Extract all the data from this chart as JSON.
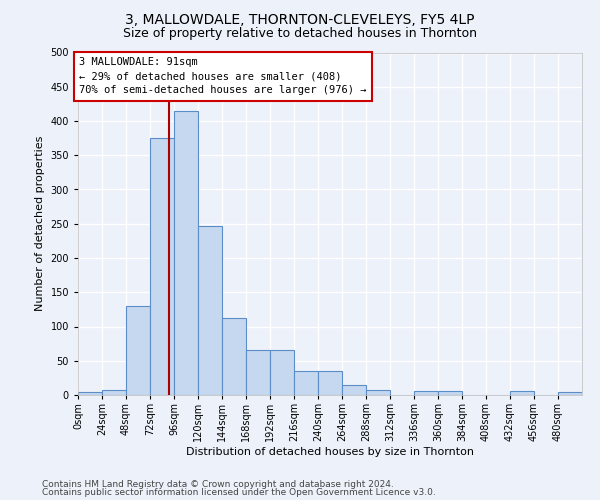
{
  "title": "3, MALLOWDALE, THORNTON-CLEVELEYS, FY5 4LP",
  "subtitle": "Size of property relative to detached houses in Thornton",
  "xlabel": "Distribution of detached houses by size in Thornton",
  "ylabel": "Number of detached properties",
  "bin_labels": [
    "0sqm",
    "24sqm",
    "48sqm",
    "72sqm",
    "96sqm",
    "120sqm",
    "144sqm",
    "168sqm",
    "192sqm",
    "216sqm",
    "240sqm",
    "264sqm",
    "288sqm",
    "312sqm",
    "336sqm",
    "360sqm",
    "384sqm",
    "408sqm",
    "432sqm",
    "456sqm",
    "480sqm"
  ],
  "bar_heights": [
    5,
    7,
    130,
    375,
    415,
    247,
    112,
    65,
    65,
    35,
    35,
    15,
    8,
    0,
    6,
    6,
    0,
    0,
    6,
    0,
    4
  ],
  "bar_color": "#c5d8f0",
  "bar_edge_color": "#5b8dc8",
  "bin_edges": [
    0,
    24,
    48,
    72,
    96,
    120,
    144,
    168,
    192,
    216,
    240,
    264,
    288,
    312,
    336,
    360,
    384,
    408,
    432,
    456,
    480,
    504
  ],
  "property_size": 91,
  "vline_color": "#aa0000",
  "annotation_text": "3 MALLOWDALE: 91sqm\n← 29% of detached houses are smaller (408)\n70% of semi-detached houses are larger (976) →",
  "annotation_box_color": "#ffffff",
  "annotation_box_edge_color": "#cc0000",
  "ylim": [
    0,
    500
  ],
  "yticks": [
    0,
    50,
    100,
    150,
    200,
    250,
    300,
    350,
    400,
    450,
    500
  ],
  "footer_line1": "Contains HM Land Registry data © Crown copyright and database right 2024.",
  "footer_line2": "Contains public sector information licensed under the Open Government Licence v3.0.",
  "bg_color": "#edf2fa",
  "grid_color": "#ffffff",
  "title_fontsize": 10,
  "subtitle_fontsize": 9,
  "axis_label_fontsize": 8,
  "tick_fontsize": 7,
  "footer_fontsize": 6.5
}
